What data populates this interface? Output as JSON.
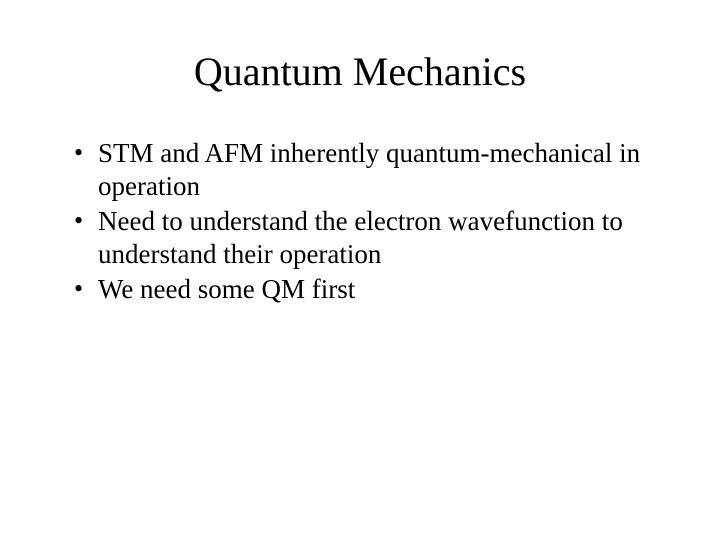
{
  "slide": {
    "title": "Quantum Mechanics",
    "bullets": [
      "STM and AFM inherently quantum-mechanical in operation",
      "Need to understand the electron wavefunction to understand their operation",
      "We need some QM first"
    ],
    "title_fontsize": 40,
    "body_fontsize": 27,
    "font_family": "Times New Roman",
    "background_color": "#ffffff",
    "text_color": "#000000"
  }
}
